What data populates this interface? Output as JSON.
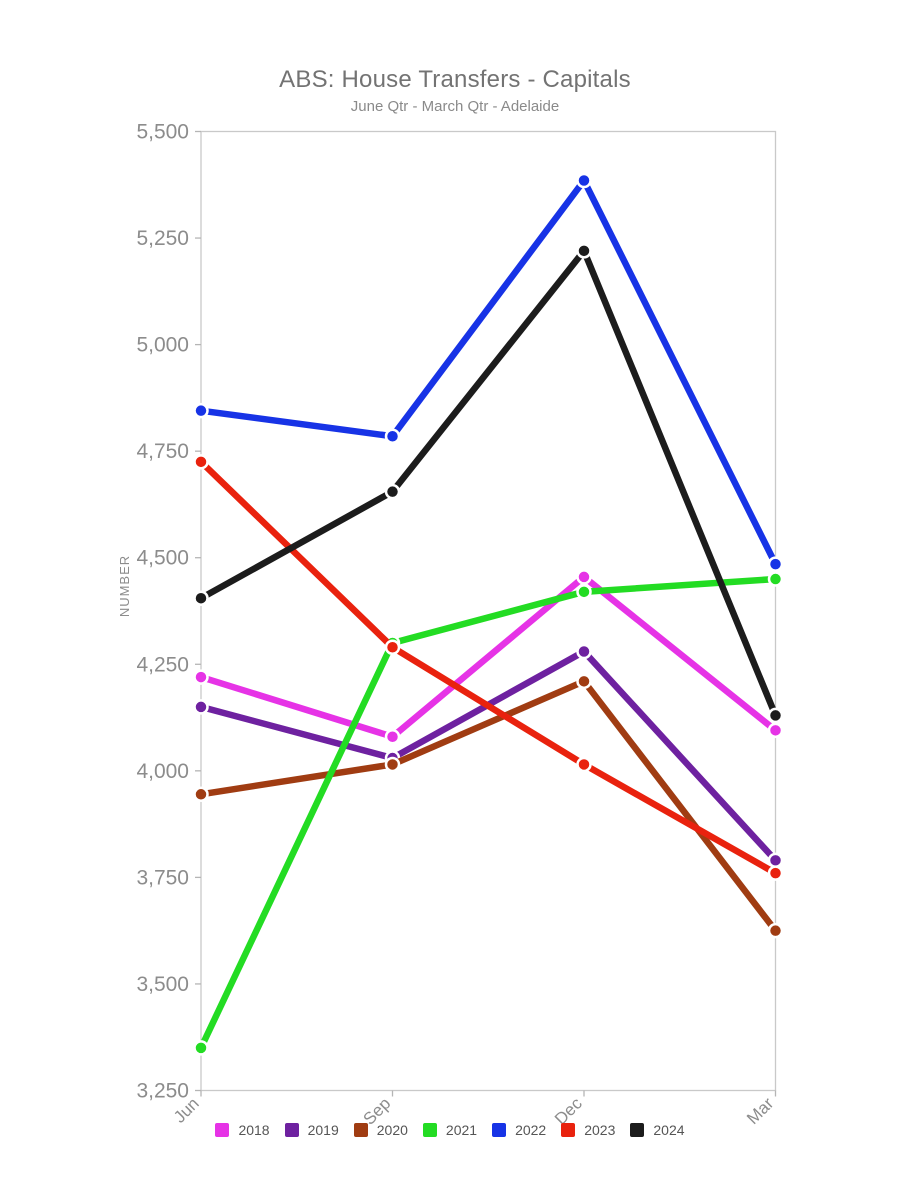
{
  "title": "ABS: House Transfers - Capitals",
  "subtitle": "June Qtr - March Qtr - Adelaide",
  "chart_data": {
    "type": "line",
    "x": [
      "Jun",
      "Sep",
      "Dec",
      "Mar"
    ],
    "series": [
      {
        "name": "2018",
        "color": "#e633e6",
        "values": [
          4220,
          4080,
          4455,
          4095
        ]
      },
      {
        "name": "2019",
        "color": "#6e21a0",
        "values": [
          4150,
          4030,
          4280,
          3790
        ]
      },
      {
        "name": "2020",
        "color": "#a03c12",
        "values": [
          3945,
          4015,
          4210,
          3625
        ]
      },
      {
        "name": "2021",
        "color": "#23dc23",
        "values": [
          3350,
          4300,
          4420,
          4450
        ]
      },
      {
        "name": "2022",
        "color": "#1733e6",
        "values": [
          4845,
          4785,
          5385,
          4485
        ]
      },
      {
        "name": "2023",
        "color": "#e9220e",
        "values": [
          4725,
          4290,
          4015,
          3760
        ]
      },
      {
        "name": "2024",
        "color": "#1c1c1c",
        "values": [
          4405,
          4655,
          5220,
          4130
        ]
      }
    ],
    "ylabel": "NUMBER",
    "xlabel": "",
    "ylim": [
      3250,
      5500
    ],
    "yticks": [
      3250,
      3500,
      3750,
      4000,
      4250,
      4500,
      4750,
      5000,
      5250,
      5500
    ],
    "ytick_labels": [
      "3,250",
      "3,500",
      "3,750",
      "4,000",
      "4,250",
      "4,500",
      "4,750",
      "5,000",
      "5,250",
      "5,500"
    ],
    "legend_position": "bottom",
    "grid": false,
    "plot_border_color": "#c9c9c9",
    "tick_color": "#b5b5b5"
  }
}
